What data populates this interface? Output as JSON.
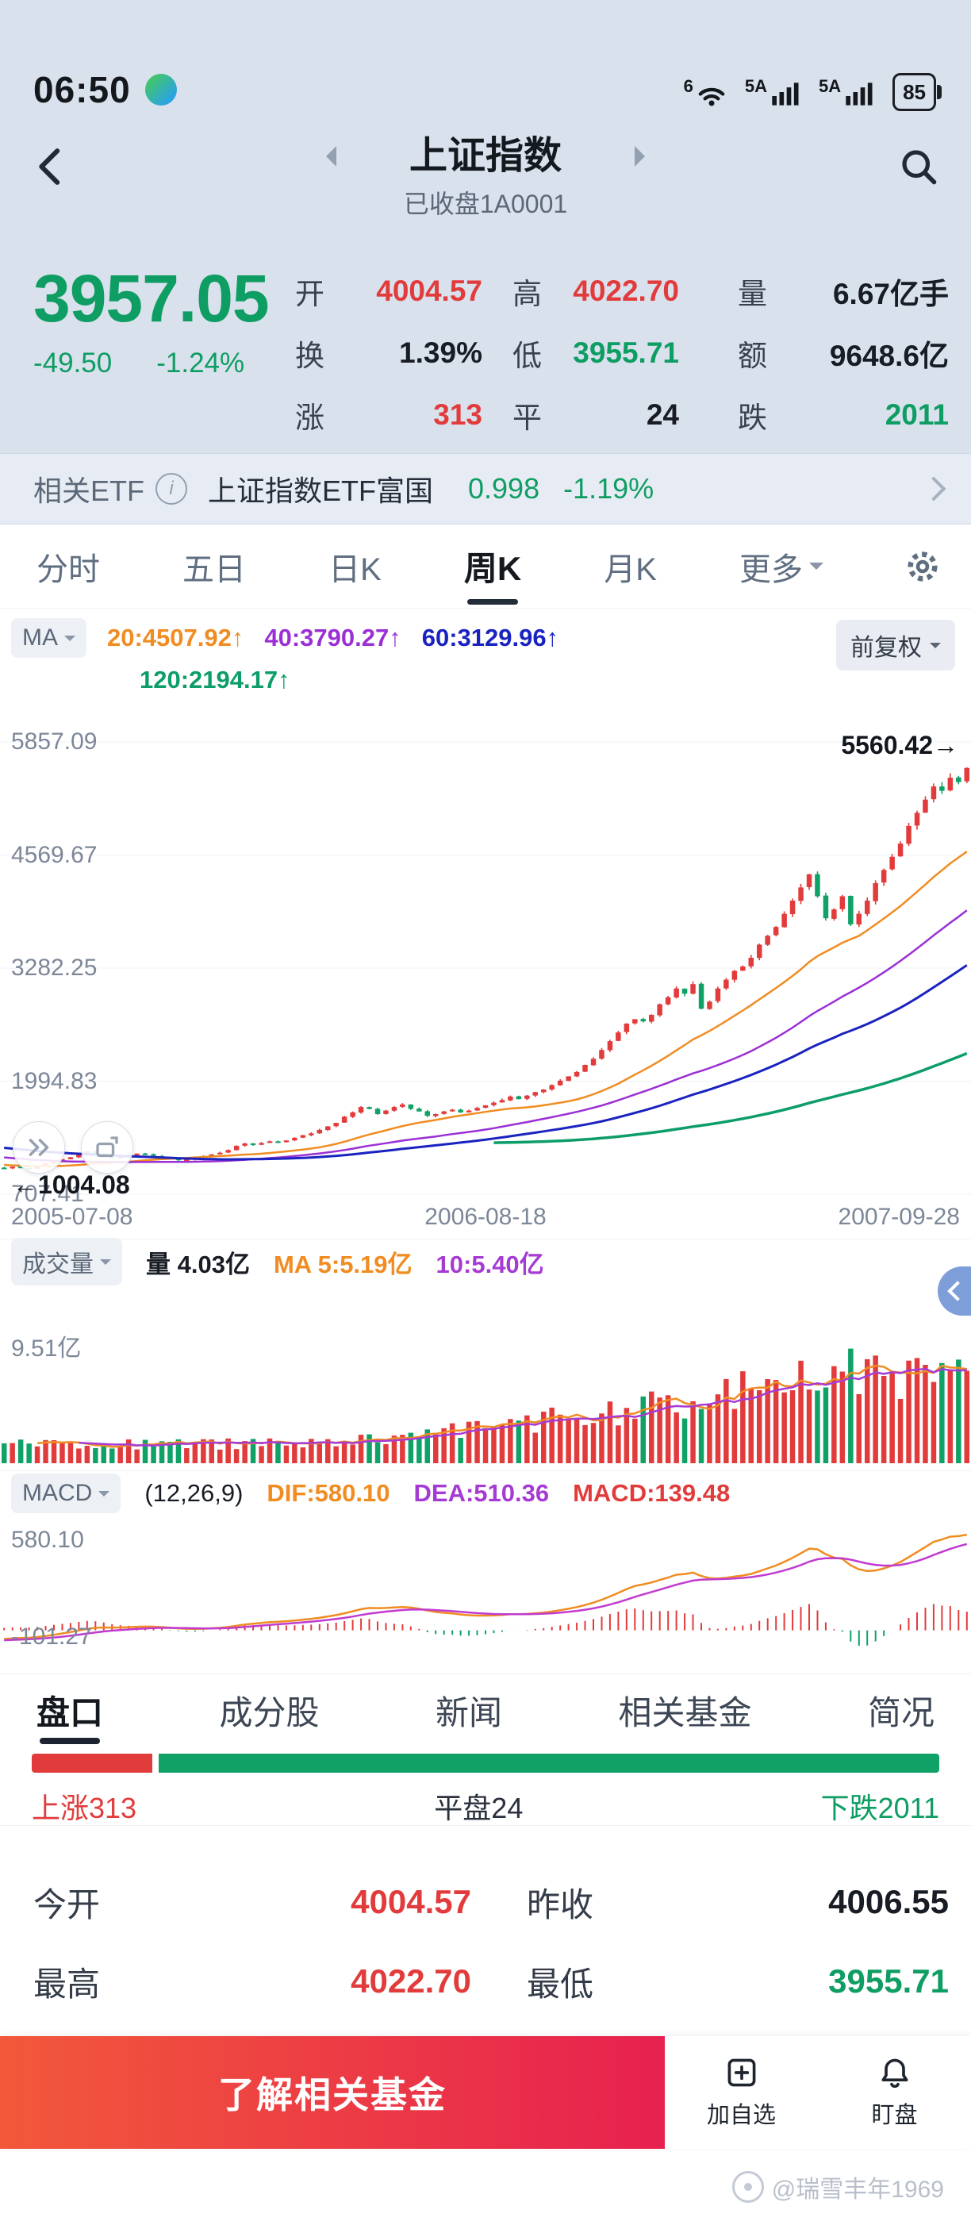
{
  "colors": {
    "red": "#e23b3b",
    "green": "#0e9d63",
    "orange": "#f08c21",
    "purple": "#9b2fd6",
    "navy": "#1a23c0",
    "teal": "#0c9d68"
  },
  "status_bar": {
    "time": "06:50",
    "wifi_tag": "6",
    "sim1": "5A",
    "sim2": "5A",
    "battery": "85"
  },
  "header": {
    "title": "上证指数",
    "subtitle": "已收盘1A0001"
  },
  "quote": {
    "price": "3957.05",
    "change": "-49.50",
    "change_pct": "-1.24%",
    "rows": [
      [
        {
          "label": "开",
          "value": "4004.57",
          "color": "red"
        },
        {
          "label": "高",
          "value": "4022.70",
          "color": "red"
        },
        {
          "label": "量",
          "value": "6.67亿手",
          "color": "dark"
        }
      ],
      [
        {
          "label": "换",
          "value": "1.39%",
          "color": "dark"
        },
        {
          "label": "低",
          "value": "3955.71",
          "color": "green"
        },
        {
          "label": "额",
          "value": "9648.6亿",
          "color": "dark"
        }
      ],
      [
        {
          "label": "涨",
          "value": "313",
          "color": "red"
        },
        {
          "label": "平",
          "value": "24",
          "color": "dark"
        },
        {
          "label": "跌",
          "value": "2011",
          "color": "green"
        }
      ]
    ]
  },
  "etf": {
    "label": "相关ETF",
    "name": "上证指数ETF富国",
    "value": "0.998",
    "pct": "-1.19%"
  },
  "period_tabs": {
    "items": [
      "分时",
      "五日",
      "日K",
      "周K",
      "月K"
    ],
    "more": "更多",
    "active": "周K"
  },
  "kline_header": {
    "ma_label": "MA",
    "ma20": "20:4507.92↑",
    "ma40": "40:3790.27↑",
    "ma60": "60:3129.96↑",
    "ma120": "120:2194.17↑",
    "adjust": "前复权"
  },
  "volume_header": {
    "label": "成交量",
    "current": "量 4.03亿",
    "ma5": "MA 5:5.19亿",
    "ma10": "10:5.40亿",
    "axis_top": "9.51亿"
  },
  "macd_header": {
    "label": "MACD",
    "params": "(12,26,9)",
    "dif": "DIF:580.10",
    "dea": "DEA:510.36",
    "macd": "MACD:139.48",
    "axis_top": "580.10",
    "axis_bottom": "-101.27"
  },
  "section_tabs": {
    "items": [
      "盘口",
      "成分股",
      "新闻",
      "相关基金",
      "简况"
    ],
    "active": "盘口"
  },
  "breadth": {
    "up": 313,
    "flat": 24,
    "down": 2011,
    "up_label": "上涨313",
    "flat_label": "平盘24",
    "down_label": "下跌2011"
  },
  "details": [
    [
      {
        "label": "今开",
        "value": "4004.57",
        "color": "red"
      },
      {
        "label": "昨收",
        "value": "4006.55",
        "color": "dark"
      }
    ],
    [
      {
        "label": "最高",
        "value": "4022.70",
        "color": "red"
      },
      {
        "label": "最低",
        "value": "3955.71",
        "color": "green"
      }
    ]
  ],
  "bottom_bar": {
    "cta": "了解相关基金",
    "add_watchlist": "加自选",
    "monitor": "盯盘"
  },
  "watermark": "@瑞雪丰年1969",
  "chart_data": {
    "type": "candlestick",
    "title": "上证指数 周K 前复权",
    "x_labels": [
      "2005-07-08",
      "2006-08-18",
      "2007-09-28"
    ],
    "y_ticks": [
      5857.09,
      4569.67,
      3282.25,
      1994.83,
      707.41
    ],
    "annotations": {
      "last_close": "5560.42→",
      "first_close": "←1004.08"
    },
    "ma_periods": [
      20,
      40,
      60,
      120
    ],
    "ma_values": {
      "ma20": 4507.92,
      "ma40": 3790.27,
      "ma60": 3129.96,
      "ma120": 2194.17
    },
    "volume_axis_top": "9.51亿",
    "volume_current": "4.03亿",
    "macd": {
      "dif": 580.1,
      "dea": 510.36,
      "macd": 139.48,
      "axis_top": 580.1,
      "axis_bottom": -101.27
    },
    "history_closes": [
      1580,
      1565,
      1550,
      1560,
      1540,
      1520,
      1500,
      1510,
      1490,
      1470,
      1455,
      1440,
      1450,
      1430,
      1410,
      1395,
      1380,
      1390,
      1370,
      1350,
      1330,
      1340,
      1320,
      1300,
      1285,
      1270,
      1280,
      1260,
      1240,
      1225,
      1210,
      1220,
      1200,
      1180,
      1165,
      1150,
      1160,
      1140,
      1120,
      1105,
      1090,
      1100,
      1085,
      1070,
      1060,
      1075,
      1065,
      1050,
      1040,
      1055,
      1045,
      1030,
      1020,
      1035,
      1025,
      1015,
      1008,
      1012,
      1005,
      1010
    ],
    "closes": [
      1004.08,
      1020,
      1008,
      998,
      1035,
      1060,
      1083,
      1107,
      1128,
      1162,
      1195,
      1170,
      1145,
      1120,
      1133,
      1155,
      1170,
      1160,
      1145,
      1130,
      1110,
      1095,
      1105,
      1120,
      1140,
      1161,
      1180,
      1210,
      1258,
      1285,
      1270,
      1290,
      1310,
      1299,
      1320,
      1350,
      1380,
      1400,
      1440,
      1480,
      1520,
      1590,
      1640,
      1700,
      1680,
      1620,
      1660,
      1700,
      1730,
      1680,
      1650,
      1600,
      1620,
      1650,
      1670,
      1640,
      1660,
      1690,
      1720,
      1750,
      1780,
      1820,
      1790,
      1830,
      1870,
      1900,
      1950,
      2000,
      2050,
      2100,
      2180,
      2250,
      2350,
      2450,
      2550,
      2650,
      2700,
      2675,
      2750,
      2870,
      2950,
      3050,
      2990,
      3100,
      2820,
      2900,
      3050,
      3150,
      3250,
      3300,
      3400,
      3550,
      3650,
      3750,
      3900,
      4050,
      4200,
      4350,
      4100,
      3850,
      3950,
      4100,
      3780,
      3900,
      4050,
      4250,
      4400,
      4550,
      4700,
      4900,
      5050,
      5200,
      5350,
      5300,
      5450,
      5400,
      5560.42
    ]
  }
}
